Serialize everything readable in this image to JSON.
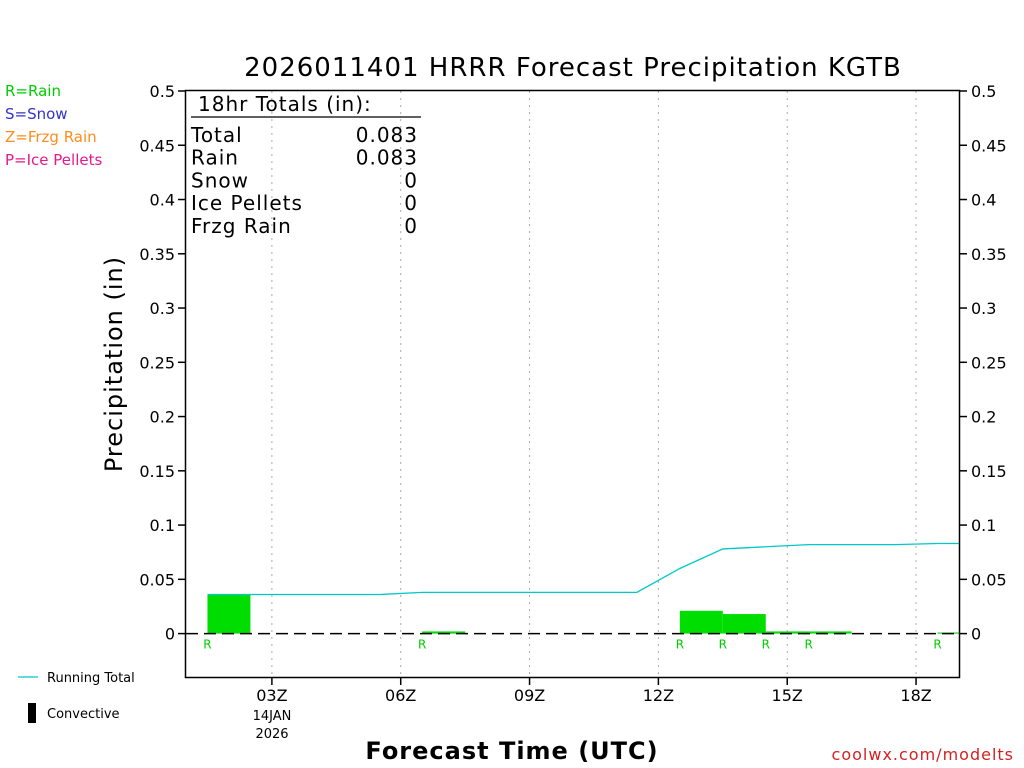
{
  "chart_data": {
    "type": "bar",
    "title": "2026011401 HRRR Forecast Precipitation KGTB",
    "xlabel": "Forecast Time (UTC)",
    "ylabel": "Precipitation (in)",
    "ylim": [
      -0.04,
      0.5
    ],
    "yticks": [
      0,
      0.05,
      0.1,
      0.15,
      0.2,
      0.25,
      0.3,
      0.35,
      0.4,
      0.45,
      0.5
    ],
    "ytick_labels": [
      "0",
      "0.05",
      "0.1",
      "0.15",
      "0.2",
      "0.25",
      "0.3",
      "0.35",
      "0.4",
      "0.45",
      "0.5"
    ],
    "xlim": [
      1,
      19
    ],
    "xticks": [
      {
        "hour": 3,
        "label": "03Z"
      },
      {
        "hour": 6,
        "label": "06Z"
      },
      {
        "hour": 9,
        "label": "09Z"
      },
      {
        "hour": 12,
        "label": "12Z"
      },
      {
        "hour": 15,
        "label": "15Z"
      },
      {
        "hour": 18,
        "label": "18Z"
      }
    ],
    "date_label_line1": "14JAN",
    "date_label_line2": "2026",
    "bars": [
      {
        "hour": 2,
        "value": 0.036,
        "type": "R"
      },
      {
        "hour": 3,
        "value": 0,
        "type": ""
      },
      {
        "hour": 4,
        "value": 0,
        "type": ""
      },
      {
        "hour": 5,
        "value": 0,
        "type": ""
      },
      {
        "hour": 6,
        "value": 0,
        "type": ""
      },
      {
        "hour": 7,
        "value": 0.002,
        "type": "R"
      },
      {
        "hour": 8,
        "value": 0,
        "type": ""
      },
      {
        "hour": 9,
        "value": 0,
        "type": ""
      },
      {
        "hour": 10,
        "value": 0,
        "type": ""
      },
      {
        "hour": 11,
        "value": 0,
        "type": ""
      },
      {
        "hour": 12,
        "value": 0,
        "type": ""
      },
      {
        "hour": 13,
        "value": 0.021,
        "type": "R"
      },
      {
        "hour": 14,
        "value": 0.018,
        "type": "R"
      },
      {
        "hour": 15,
        "value": 0.002,
        "type": "R"
      },
      {
        "hour": 16,
        "value": 0.002,
        "type": "R"
      },
      {
        "hour": 17,
        "value": 0,
        "type": ""
      },
      {
        "hour": 18,
        "value": 0,
        "type": ""
      },
      {
        "hour": 19,
        "value": 0.001,
        "type": "R"
      }
    ],
    "running_total": [
      {
        "hour": 2,
        "value": 0.036
      },
      {
        "hour": 3,
        "value": 0.036
      },
      {
        "hour": 4,
        "value": 0.036
      },
      {
        "hour": 5,
        "value": 0.036
      },
      {
        "hour": 6,
        "value": 0.036
      },
      {
        "hour": 7,
        "value": 0.038
      },
      {
        "hour": 8,
        "value": 0.038
      },
      {
        "hour": 9,
        "value": 0.038
      },
      {
        "hour": 10,
        "value": 0.038
      },
      {
        "hour": 11,
        "value": 0.038
      },
      {
        "hour": 12,
        "value": 0.038
      },
      {
        "hour": 13,
        "value": 0.06
      },
      {
        "hour": 14,
        "value": 0.078
      },
      {
        "hour": 15,
        "value": 0.08
      },
      {
        "hour": 16,
        "value": 0.082
      },
      {
        "hour": 17,
        "value": 0.082
      },
      {
        "hour": 18,
        "value": 0.082
      },
      {
        "hour": 19,
        "value": 0.083
      }
    ],
    "totals": {
      "header": "18hr Totals (in):",
      "rows": [
        {
          "label": "Total",
          "value": "0.083"
        },
        {
          "label": "Rain",
          "value": "0.083"
        },
        {
          "label": "Snow",
          "value": "0"
        },
        {
          "label": "Ice Pellets",
          "value": "0"
        },
        {
          "label": "Frzg Rain",
          "value": "0"
        }
      ]
    },
    "type_legend": [
      {
        "text": "R=Rain",
        "color": "#00cc00"
      },
      {
        "text": "S=Snow",
        "color": "#3333cc"
      },
      {
        "text": "Z=Frzg Rain",
        "color": "#ff8c1a"
      },
      {
        "text": "P=Ice Pellets",
        "color": "#e6198c"
      }
    ],
    "series_legend": {
      "running_total": "Running Total",
      "convective": "Convective"
    },
    "colors": {
      "rain_bar": "#00dd00",
      "rain_marker": "#00cc00",
      "running_total": "#00c8c8",
      "convective": "#000000",
      "grid": "#aaaaaa",
      "credit": "#d62020"
    },
    "grid": true,
    "credit": "coolwx.com/modelts"
  }
}
